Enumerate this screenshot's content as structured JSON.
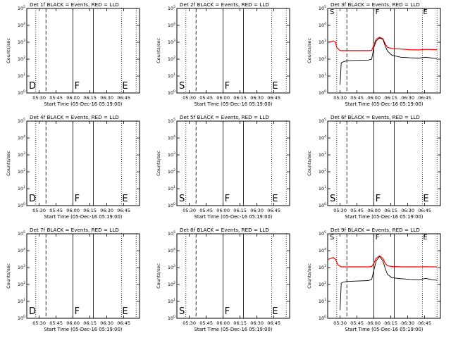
{
  "chart_data": [
    {
      "type": "line",
      "title": "Det 1f BLACK = Events, RED = LLD",
      "xlabel": "Start Time (05-Dec-16 05:19:00)",
      "ylabel": "Counts/sec",
      "x_tick_labels": [
        "05:30",
        "05:45",
        "06:00",
        "06:15",
        "06:30",
        "06:45"
      ],
      "y_tick_labels": [
        "10^0",
        "10^1",
        "10^2",
        "10^3",
        "10^4",
        "10^5"
      ],
      "ylim": [
        1,
        100000
      ],
      "y_scale": "log",
      "markers": [
        "D",
        "F",
        "E"
      ],
      "series": []
    },
    {
      "type": "line",
      "title": "Det 2f BLACK = Events, RED = LLD",
      "xlabel": "Start Time (05-Dec-16 05:19:00)",
      "ylabel": "Counts/sec",
      "x_tick_labels": [
        "05:30",
        "05:45",
        "06:00",
        "06:15",
        "06:30",
        "06:45"
      ],
      "y_tick_labels": [
        "10^0",
        "10^1",
        "10^2",
        "10^3",
        "10^4",
        "10^5"
      ],
      "ylim": [
        1,
        100000
      ],
      "y_scale": "log",
      "markers": [
        "S",
        "F",
        "E"
      ],
      "series": []
    },
    {
      "type": "line",
      "title": "Det 3f BLACK = Events, RED = LLD",
      "xlabel": "Start Time (05-Dec-16 05:19:00)",
      "ylabel": "Counts/sec",
      "x_tick_labels": [
        "05:30",
        "05:45",
        "06:00",
        "06:15",
        "06:30",
        "06:45"
      ],
      "y_tick_labels": [
        "10^0",
        "10^1",
        "10^2",
        "10^3",
        "10^4",
        "10^5"
      ],
      "ylim": [
        1,
        100000
      ],
      "y_scale": "log",
      "markers": [
        "S",
        "F",
        "E"
      ],
      "series": [
        {
          "color": "#ff0000",
          "x": [
            "05:19",
            "05:22",
            "05:24",
            "05:26",
            "05:27",
            "05:30",
            "05:36",
            "05:45",
            "05:55",
            "05:58",
            "06:00",
            "06:02",
            "06:05",
            "06:08",
            "06:10",
            "06:12",
            "06:16",
            "06:24",
            "06:32",
            "06:40",
            "06:46",
            "06:52",
            "06:56"
          ],
          "y": [
            1000,
            1100,
            1200,
            1000,
            500,
            320,
            320,
            320,
            320,
            330,
            700,
            1500,
            2000,
            1600,
            800,
            500,
            430,
            400,
            360,
            350,
            380,
            370,
            360
          ]
        },
        {
          "color": "#000000",
          "x": [
            "05:30",
            "05:31",
            "05:33",
            "05:36",
            "05:45",
            "05:55",
            "05:58",
            "06:00",
            "06:02",
            "06:05",
            "06:08",
            "06:10",
            "06:12",
            "06:16",
            "06:24",
            "06:32",
            "06:40",
            "06:46",
            "06:52",
            "06:56"
          ],
          "y": [
            3,
            60,
            70,
            80,
            85,
            88,
            100,
            500,
            1200,
            1800,
            1500,
            600,
            300,
            170,
            130,
            120,
            115,
            130,
            115,
            110
          ]
        }
      ]
    },
    {
      "type": "line",
      "title": "Det 4f BLACK = Events, RED = LLD",
      "xlabel": "Start Time (05-Dec-16 05:19:00)",
      "ylabel": "Counts/sec",
      "x_tick_labels": [
        "05:30",
        "05:45",
        "06:00",
        "06:15",
        "06:30",
        "06:45"
      ],
      "y_tick_labels": [
        "10^0",
        "10^1",
        "10^2",
        "10^3",
        "10^4",
        "10^5"
      ],
      "ylim": [
        1,
        100000
      ],
      "y_scale": "log",
      "markers": [
        "D",
        "F",
        "E"
      ],
      "series": []
    },
    {
      "type": "line",
      "title": "Det 5f BLACK = Events, RED = LLD",
      "xlabel": "Start Time (05-Dec-16 05:19:00)",
      "ylabel": "Counts/sec",
      "x_tick_labels": [
        "05:30",
        "05:45",
        "06:00",
        "06:15",
        "06:30",
        "06:45"
      ],
      "y_tick_labels": [
        "10^0",
        "10^1",
        "10^2",
        "10^3",
        "10^4",
        "10^5"
      ],
      "ylim": [
        1,
        100000
      ],
      "y_scale": "log",
      "markers": [
        "S",
        "F",
        "E"
      ],
      "series": []
    },
    {
      "type": "line",
      "title": "Det 6f BLACK = Events, RED = LLD",
      "xlabel": "Start Time (05-Dec-16 05:19:00)",
      "ylabel": "Counts/sec",
      "x_tick_labels": [
        "05:30",
        "05:45",
        "06:00",
        "06:15",
        "06:30",
        "06:45"
      ],
      "y_tick_labels": [
        "10^0",
        "10^1",
        "10^2",
        "10^3",
        "10^4",
        "10^5"
      ],
      "ylim": [
        1,
        100000
      ],
      "y_scale": "log",
      "markers": [
        "S",
        "F",
        "E"
      ],
      "series": []
    },
    {
      "type": "line",
      "title": "Det 7f BLACK = Events, RED = LLD",
      "xlabel": "Start Time (05-Dec-16 05:19:00)",
      "ylabel": "Counts/sec",
      "x_tick_labels": [
        "05:30",
        "05:45",
        "06:00",
        "06:15",
        "06:30",
        "06:45"
      ],
      "y_tick_labels": [
        "10^0",
        "10^1",
        "10^2",
        "10^3",
        "10^4",
        "10^5"
      ],
      "ylim": [
        1,
        100000
      ],
      "y_scale": "log",
      "markers": [
        "D",
        "F",
        "E"
      ],
      "series": []
    },
    {
      "type": "line",
      "title": "Det 8f BLACK = Events, RED = LLD",
      "xlabel": "Start Time (05-Dec-16 05:19:00)",
      "ylabel": "Counts/sec",
      "x_tick_labels": [
        "05:30",
        "05:45",
        "06:00",
        "06:15",
        "06:30",
        "06:45"
      ],
      "y_tick_labels": [
        "10^0",
        "10^1",
        "10^2",
        "10^3",
        "10^4",
        "10^5"
      ],
      "ylim": [
        1,
        100000
      ],
      "y_scale": "log",
      "markers": [
        "S",
        "F",
        "E"
      ],
      "series": []
    },
    {
      "type": "line",
      "title": "Det 9f BLACK = Events, RED = LLD",
      "xlabel": "Start Time (05-Dec-16 05:19:00)",
      "ylabel": "Counts/sec",
      "x_tick_labels": [
        "05:30",
        "05:45",
        "06:00",
        "06:15",
        "06:30",
        "06:45"
      ],
      "y_tick_labels": [
        "10^0",
        "10^1",
        "10^2",
        "10^3",
        "10^4",
        "10^5"
      ],
      "ylim": [
        1,
        100000
      ],
      "y_scale": "log",
      "markers": [
        "S",
        "F",
        "E"
      ],
      "series": [
        {
          "color": "#ff0000",
          "x": [
            "05:19",
            "05:22",
            "05:24",
            "05:26",
            "05:28",
            "05:31",
            "05:36",
            "05:45",
            "05:55",
            "05:58",
            "06:00",
            "06:02",
            "06:05",
            "06:08",
            "06:10",
            "06:12",
            "06:16",
            "06:24",
            "06:32",
            "06:40",
            "06:46",
            "06:52",
            "06:56"
          ],
          "y": [
            3000,
            3500,
            4000,
            3000,
            1500,
            1100,
            1100,
            1100,
            1100,
            1150,
            1800,
            3500,
            5000,
            3500,
            1800,
            1300,
            1150,
            1100,
            1100,
            1100,
            1120,
            1100,
            1100
          ]
        },
        {
          "color": "#000000",
          "x": [
            "05:30",
            "05:31",
            "05:33",
            "05:36",
            "05:45",
            "05:55",
            "05:58",
            "06:00",
            "06:02",
            "06:05",
            "06:08",
            "06:10",
            "06:12",
            "06:16",
            "06:24",
            "06:32",
            "06:40",
            "06:46",
            "06:52",
            "06:56"
          ],
          "y": [
            3,
            120,
            140,
            150,
            160,
            170,
            200,
            700,
            2500,
            4500,
            2500,
            900,
            400,
            250,
            220,
            200,
            190,
            230,
            190,
            180
          ]
        }
      ]
    }
  ]
}
